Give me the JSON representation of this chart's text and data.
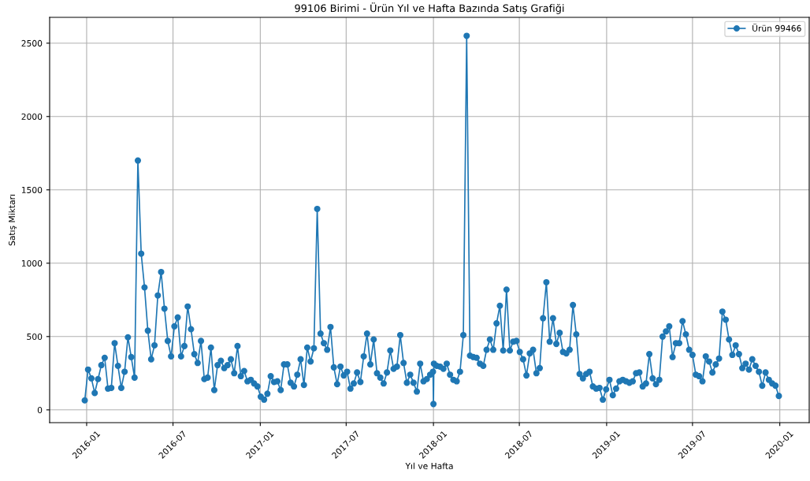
{
  "chart_data": {
    "type": "line",
    "title": "99106 Birimi - Ürün Yıl ve Hafta Bazında Satış Grafiği",
    "xlabel": "Yıl ve Hafta",
    "ylabel": "Satış Miktarı",
    "series": [
      {
        "name": "Ürün 99466",
        "color": "#1f77b4",
        "x": [
          "2015-12-28",
          "2016-01-04",
          "2016-01-11",
          "2016-01-18",
          "2016-01-25",
          "2016-02-01",
          "2016-02-08",
          "2016-02-15",
          "2016-02-22",
          "2016-02-29",
          "2016-03-07",
          "2016-03-14",
          "2016-03-21",
          "2016-03-28",
          "2016-04-04",
          "2016-04-11",
          "2016-04-18",
          "2016-04-25",
          "2016-05-02",
          "2016-05-09",
          "2016-05-16",
          "2016-05-23",
          "2016-05-30",
          "2016-06-06",
          "2016-06-13",
          "2016-06-20",
          "2016-06-27",
          "2016-07-04",
          "2016-07-11",
          "2016-07-18",
          "2016-07-25",
          "2016-08-01",
          "2016-08-08",
          "2016-08-15",
          "2016-08-22",
          "2016-08-29",
          "2016-09-05",
          "2016-09-12",
          "2016-09-19",
          "2016-09-26",
          "2016-10-03",
          "2016-10-10",
          "2016-10-17",
          "2016-10-24",
          "2016-10-31",
          "2016-11-07",
          "2016-11-14",
          "2016-11-21",
          "2016-11-28",
          "2016-12-05",
          "2016-12-12",
          "2016-12-19",
          "2016-12-26",
          "2017-01-02",
          "2017-01-09",
          "2017-01-16",
          "2017-01-23",
          "2017-01-30",
          "2017-02-06",
          "2017-02-13",
          "2017-02-20",
          "2017-02-27",
          "2017-03-06",
          "2017-03-13",
          "2017-03-20",
          "2017-03-27",
          "2017-04-03",
          "2017-04-10",
          "2017-04-17",
          "2017-04-24",
          "2017-05-01",
          "2017-05-08",
          "2017-05-15",
          "2017-05-22",
          "2017-05-29",
          "2017-06-05",
          "2017-06-12",
          "2017-06-19",
          "2017-06-26",
          "2017-07-03",
          "2017-07-10",
          "2017-07-17",
          "2017-07-24",
          "2017-07-31",
          "2017-08-07",
          "2017-08-14",
          "2017-08-21",
          "2017-08-28",
          "2017-09-04",
          "2017-09-11",
          "2017-09-18",
          "2017-09-25",
          "2017-10-02",
          "2017-10-09",
          "2017-10-16",
          "2017-10-23",
          "2017-10-30",
          "2017-11-06",
          "2017-11-13",
          "2017-11-20",
          "2017-11-27",
          "2017-12-04",
          "2017-12-11",
          "2017-12-18",
          "2017-12-25",
          "2017-12-31",
          "2018-01-01",
          "2018-01-02",
          "2018-01-08",
          "2018-01-15",
          "2018-01-22",
          "2018-01-29",
          "2018-02-05",
          "2018-02-12",
          "2018-02-19",
          "2018-02-26",
          "2018-03-05",
          "2018-03-12",
          "2018-03-19",
          "2018-03-26",
          "2018-04-02",
          "2018-04-09",
          "2018-04-16",
          "2018-04-23",
          "2018-04-30",
          "2018-05-07",
          "2018-05-14",
          "2018-05-21",
          "2018-05-28",
          "2018-06-04",
          "2018-06-11",
          "2018-06-18",
          "2018-06-25",
          "2018-07-02",
          "2018-07-09",
          "2018-07-16",
          "2018-07-23",
          "2018-07-30",
          "2018-08-06",
          "2018-08-13",
          "2018-08-20",
          "2018-08-27",
          "2018-09-03",
          "2018-09-10",
          "2018-09-17",
          "2018-09-24",
          "2018-10-01",
          "2018-10-08",
          "2018-10-15",
          "2018-10-22",
          "2018-10-29",
          "2018-11-05",
          "2018-11-12",
          "2018-11-19",
          "2018-11-26",
          "2018-12-03",
          "2018-12-10",
          "2018-12-17",
          "2018-12-24",
          "2018-12-31",
          "2019-01-07",
          "2019-01-14",
          "2019-01-21",
          "2019-01-28",
          "2019-02-04",
          "2019-02-11",
          "2019-02-18",
          "2019-02-25",
          "2019-03-04",
          "2019-03-11",
          "2019-03-18",
          "2019-03-25",
          "2019-04-01",
          "2019-04-08",
          "2019-04-15",
          "2019-04-22",
          "2019-04-29",
          "2019-05-06",
          "2019-05-13",
          "2019-05-20",
          "2019-05-27",
          "2019-06-03",
          "2019-06-10",
          "2019-06-17",
          "2019-06-24",
          "2019-07-01",
          "2019-07-08",
          "2019-07-15",
          "2019-07-22",
          "2019-07-29",
          "2019-08-05",
          "2019-08-12",
          "2019-08-19",
          "2019-08-26",
          "2019-09-02",
          "2019-09-09",
          "2019-09-16",
          "2019-09-23",
          "2019-09-30",
          "2019-10-07",
          "2019-10-14",
          "2019-10-21",
          "2019-10-28",
          "2019-11-04",
          "2019-11-11",
          "2019-11-18",
          "2019-11-25",
          "2019-12-02",
          "2019-12-09",
          "2019-12-16",
          "2019-12-23",
          "2019-12-30"
        ],
        "values": [
          65,
          275,
          215,
          115,
          210,
          305,
          355,
          145,
          150,
          455,
          300,
          150,
          260,
          495,
          360,
          220,
          1700,
          1065,
          835,
          540,
          345,
          440,
          780,
          940,
          690,
          470,
          365,
          570,
          630,
          365,
          435,
          705,
          550,
          380,
          320,
          470,
          210,
          220,
          425,
          135,
          305,
          335,
          285,
          305,
          345,
          250,
          435,
          230,
          265,
          195,
          205,
          180,
          160,
          90,
          70,
          110,
          230,
          190,
          195,
          135,
          310,
          310,
          185,
          160,
          240,
          345,
          170,
          425,
          330,
          420,
          1370,
          520,
          455,
          410,
          565,
          290,
          175,
          295,
          235,
          260,
          145,
          180,
          255,
          190,
          365,
          520,
          310,
          480,
          250,
          220,
          180,
          255,
          405,
          280,
          295,
          510,
          320,
          185,
          240,
          185,
          125,
          315,
          195,
          210,
          240,
          260,
          40,
          315,
          300,
          295,
          280,
          315,
          240,
          205,
          195,
          260,
          510,
          2550,
          370,
          360,
          355,
          315,
          300,
          410,
          480,
          410,
          590,
          710,
          405,
          820,
          405,
          465,
          470,
          395,
          345,
          235,
          385,
          410,
          250,
          285,
          625,
          870,
          465,
          625,
          450,
          525,
          395,
          385,
          410,
          715,
          515,
          245,
          215,
          245,
          260,
          160,
          145,
          150,
          70,
          140,
          205,
          100,
          145,
          195,
          205,
          195,
          185,
          195,
          250,
          255,
          160,
          180,
          380,
          215,
          175,
          205,
          500,
          535,
          570,
          360,
          455,
          455,
          605,
          515,
          410,
          375,
          240,
          230,
          195,
          365,
          330,
          255,
          310,
          350,
          670,
          615,
          480,
          375,
          440,
          380,
          285,
          315,
          275,
          345,
          300,
          260,
          165,
          255,
          205,
          180,
          165,
          95
        ]
      }
    ],
    "xlim": [
      "2015-10-15",
      "2020-03-03"
    ],
    "ylim": [
      -87,
      2676
    ],
    "xticks": [
      "2016-01",
      "2016-07",
      "2017-01",
      "2017-07",
      "2018-01",
      "2018-07",
      "2019-01",
      "2019-07",
      "2020-01"
    ],
    "yticks": [
      0,
      500,
      1000,
      1500,
      2000,
      2500
    ],
    "grid": true,
    "legend": "top right",
    "marker": "circle",
    "line_style": "solid"
  }
}
